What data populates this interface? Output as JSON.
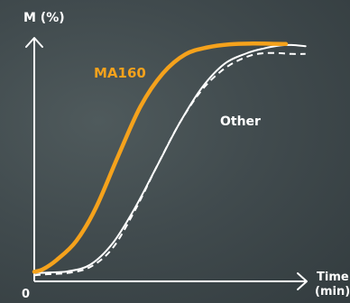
{
  "chart_data": {
    "type": "line",
    "ylabel": "M (%)",
    "xlabel_line1": "Time",
    "xlabel_line2": "(min)",
    "origin_label": "0",
    "x_range": [
      0,
      100
    ],
    "y_range": [
      0,
      100
    ],
    "series": [
      {
        "name": "MA160",
        "color": "#f5a21c",
        "style": "solid",
        "x": [
          0,
          3,
          8,
          15,
          22,
          30,
          38,
          46,
          54,
          62,
          70,
          78,
          86,
          90
        ],
        "y": [
          1,
          2,
          6,
          14,
          28,
          50,
          71,
          85,
          93,
          96,
          97.3,
          97.6,
          97.5,
          97.4
        ]
      },
      {
        "name": "Other",
        "color": "#ffffff",
        "style": "solid",
        "x": [
          0,
          5,
          12,
          20,
          28,
          36,
          44,
          52,
          60,
          68,
          76,
          82,
          88,
          92,
          97
        ],
        "y": [
          0.5,
          0.7,
          1.2,
          4,
          13,
          28,
          46,
          64,
          79,
          89,
          93.5,
          95.5,
          96.8,
          97,
          96.5
        ]
      },
      {
        "name": "",
        "color": "#ffffff",
        "style": "dashed",
        "x": [
          0,
          5,
          12,
          20,
          28,
          36,
          44,
          52,
          60,
          68,
          76,
          82,
          88,
          92,
          97
        ],
        "y": [
          -0.5,
          0,
          0.5,
          3,
          11,
          27,
          46,
          64,
          78,
          87,
          92,
          93.5,
          93.5,
          93.2,
          93.2
        ]
      }
    ]
  }
}
